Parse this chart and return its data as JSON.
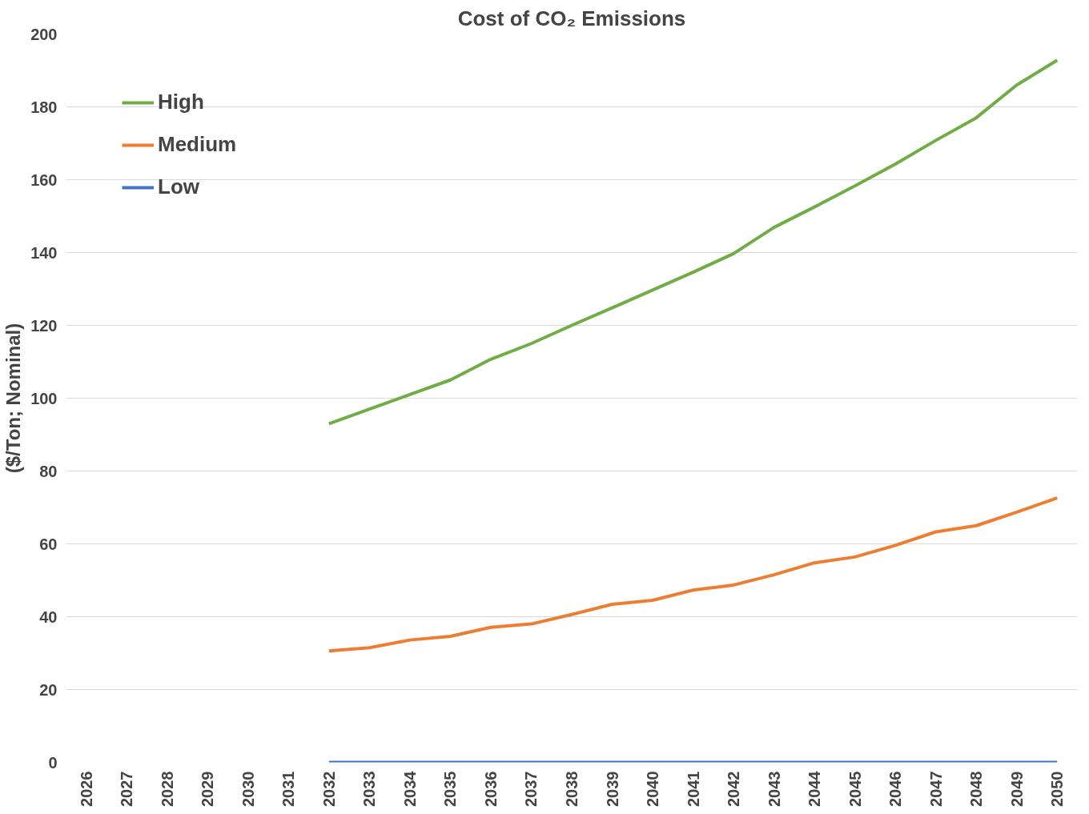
{
  "chart_data": {
    "type": "line",
    "title": "Cost of CO₂ Emissions",
    "ylabel": "($/Ton; Nominal)",
    "categories": [
      "2026",
      "2027",
      "2028",
      "2029",
      "2030",
      "2031",
      "2032",
      "2033",
      "2034",
      "2035",
      "2036",
      "2037",
      "2038",
      "2039",
      "2040",
      "2041",
      "2042",
      "2043",
      "2044",
      "2045",
      "2046",
      "2047",
      "2048",
      "2049",
      "2050"
    ],
    "series": [
      {
        "name": "High",
        "color": "#70ad47",
        "values": [
          null,
          null,
          null,
          null,
          null,
          null,
          93,
          97,
          101,
          105,
          110.7,
          115,
          120,
          124.8,
          129.7,
          134.6,
          139.7,
          146.9,
          152.5,
          158.3,
          164.3,
          170.8,
          177,
          186,
          192.8
        ]
      },
      {
        "name": "Medium",
        "color": "#ed7d31",
        "values": [
          null,
          null,
          null,
          null,
          null,
          null,
          30.6,
          31.5,
          33.6,
          34.6,
          37.1,
          38,
          40.6,
          43.4,
          44.5,
          47.3,
          48.7,
          51.5,
          54.8,
          56.4,
          59.6,
          63.3,
          65,
          68.7,
          72.6
        ]
      },
      {
        "name": "Low",
        "color": "#4472c4",
        "values": [
          null,
          null,
          null,
          null,
          null,
          null,
          0,
          0,
          0,
          0,
          0,
          0,
          0,
          0,
          0,
          0,
          0,
          0,
          0,
          0,
          0,
          0,
          0,
          0,
          0
        ]
      }
    ],
    "ylim": [
      0,
      200
    ],
    "yticks": [
      0,
      20,
      40,
      60,
      80,
      100,
      120,
      140,
      160,
      180,
      200
    ],
    "grid": "y",
    "legend": "top left",
    "line_style": "solid",
    "marker": "none"
  }
}
